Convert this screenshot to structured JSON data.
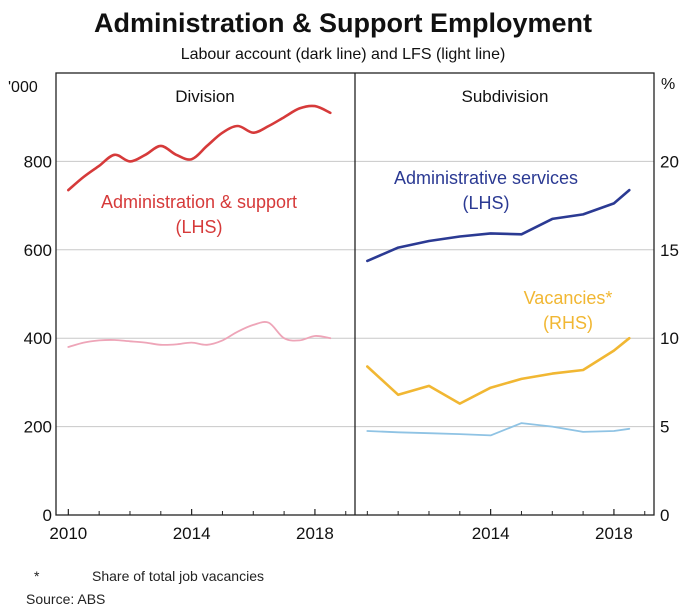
{
  "title": "Administration & Support Employment",
  "subtitle": "Labour account (dark line) and LFS (light line)",
  "footnote": {
    "marker": "*",
    "text": "Share of total job vacancies",
    "source": "Source:   ABS"
  },
  "colors": {
    "admin_dark": "#d63a3a",
    "admin_light": "#eea5b8",
    "services_dark": "#2b3a93",
    "services_light": "#8fc3e4",
    "vacancies": "#f1b733",
    "grid": "#c8c8c8",
    "frame": "#222222"
  },
  "chart_data": [
    {
      "type": "line",
      "panel_title": "Division",
      "left_unit": "'000",
      "ylim": [
        0,
        1000
      ],
      "yticks": [
        0,
        200,
        400,
        600,
        800
      ],
      "xlim": [
        2009.6,
        2019.3
      ],
      "xticks": [
        2010,
        2014,
        2018
      ],
      "grid": true,
      "annotations": [
        {
          "lines": [
            "Administration & support",
            "(LHS)"
          ],
          "color_key": "admin_dark"
        }
      ],
      "series": [
        {
          "name": "Administration & support (LHS)",
          "style": "dark",
          "color_key": "admin_dark",
          "x": [
            2010.0,
            2010.5,
            2011.0,
            2011.5,
            2012.0,
            2012.5,
            2013.0,
            2013.5,
            2014.0,
            2014.5,
            2015.0,
            2015.5,
            2016.0,
            2016.5,
            2017.0,
            2017.5,
            2018.0,
            2018.5
          ],
          "y": [
            735,
            765,
            790,
            815,
            800,
            815,
            835,
            815,
            805,
            835,
            865,
            880,
            865,
            880,
            900,
            920,
            925,
            910
          ]
        },
        {
          "name": "Administration & support (LFS)",
          "style": "light",
          "color_key": "admin_light",
          "x": [
            2010.0,
            2010.5,
            2011.0,
            2011.5,
            2012.0,
            2012.5,
            2013.0,
            2013.5,
            2014.0,
            2014.5,
            2015.0,
            2015.5,
            2016.0,
            2016.5,
            2017.0,
            2017.5,
            2018.0,
            2018.5
          ],
          "y": [
            380,
            390,
            395,
            396,
            393,
            390,
            385,
            386,
            390,
            385,
            395,
            415,
            430,
            435,
            400,
            395,
            405,
            400
          ]
        }
      ]
    },
    {
      "type": "line",
      "panel_title": "Subdivision",
      "right_unit": "%",
      "ylim": [
        0,
        25
      ],
      "yticks": [
        0,
        5,
        10,
        15,
        20
      ],
      "left_ylim": [
        0,
        1000
      ],
      "xlim": [
        2009.6,
        2019.3
      ],
      "xticks": [
        2014,
        2018
      ],
      "grid": true,
      "annotations": [
        {
          "lines": [
            "Administrative services",
            "(LHS)"
          ],
          "color_key": "services_dark"
        },
        {
          "lines": [
            "Vacancies*",
            "(RHS)"
          ],
          "color_key": "vacancies"
        }
      ],
      "series": [
        {
          "name": "Administrative services (LHS)",
          "axis": "left",
          "style": "dark",
          "color_key": "services_dark",
          "x": [
            2010.0,
            2011.0,
            2012.0,
            2013.0,
            2014.0,
            2015.0,
            2016.0,
            2017.0,
            2018.0,
            2018.5
          ],
          "y": [
            575,
            605,
            620,
            630,
            637,
            635,
            670,
            680,
            705,
            735
          ]
        },
        {
          "name": "Administrative services (LFS)",
          "axis": "left",
          "style": "light",
          "color_key": "services_light",
          "x": [
            2010.0,
            2011.0,
            2012.0,
            2013.0,
            2014.0,
            2015.0,
            2016.0,
            2017.0,
            2018.0,
            2018.5
          ],
          "y": [
            190,
            187,
            185,
            183,
            180,
            208,
            200,
            188,
            190,
            195
          ]
        },
        {
          "name": "Vacancies* (RHS)",
          "axis": "right",
          "style": "dark",
          "color_key": "vacancies",
          "x": [
            2010.0,
            2011.0,
            2012.0,
            2013.0,
            2014.0,
            2015.0,
            2016.0,
            2017.0,
            2018.0,
            2018.5
          ],
          "y": [
            8.4,
            6.8,
            7.3,
            6.3,
            7.2,
            7.7,
            8.0,
            8.2,
            9.3,
            10.0
          ]
        }
      ]
    }
  ]
}
